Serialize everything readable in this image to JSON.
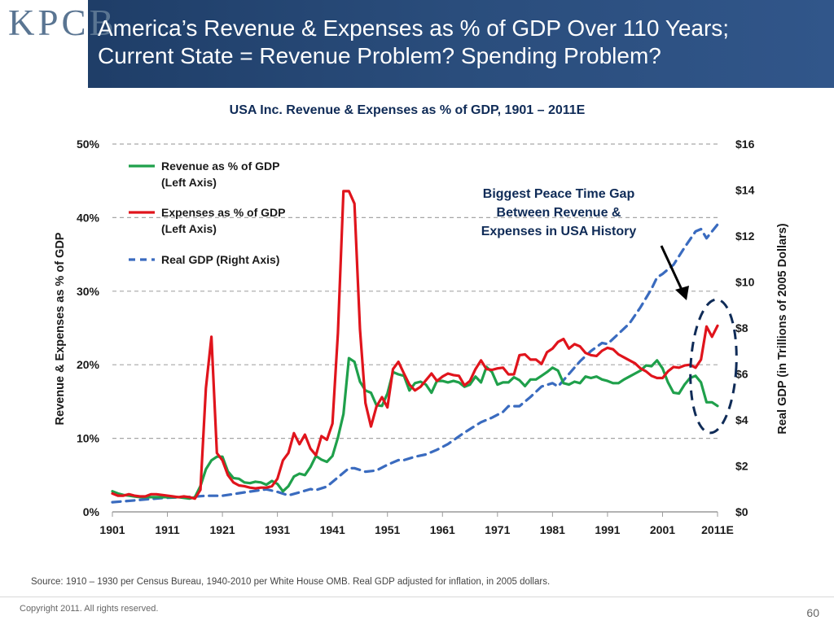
{
  "slide": {
    "logo_text": "KPCB",
    "title_line1": "America’s Revenue & Expenses as % of GDP Over 110 Years;",
    "title_line2": "Current State = Revenue Problem? Spending Problem?",
    "source_note": "Source: 1910 – 1930 per Census Bureau, 1940-2010 per White House OMB. Real GDP adjusted for inflation, in 2005 dollars.",
    "copyright": "Copyright 2011. All rights reserved.",
    "page_number": "60"
  },
  "colors": {
    "revenue": "#1fa04b",
    "expenses": "#e0141c",
    "gdp": "#3a6bbf",
    "ellipse": "#0f2b57",
    "grid": "#a6a6a6"
  },
  "chart_data": {
    "type": "line",
    "title": "USA Inc. Revenue & Expenses as % of GDP, 1901 – 2011E",
    "ylabel_left": "Revenue & Expenses as % of GDP",
    "ylabel_right": "Real GDP (in Trillions of 2005 Dollars)",
    "ylim_left": [
      0,
      50
    ],
    "ylim_right": [
      0,
      16
    ],
    "xlim": [
      1901,
      2011
    ],
    "x_ticks": [
      "1901",
      "1911",
      "1921",
      "1931",
      "1941",
      "1951",
      "1961",
      "1971",
      "1981",
      "1991",
      "2001",
      "2011E"
    ],
    "y_ticks_left": [
      "0%",
      "10%",
      "20%",
      "30%",
      "40%",
      "50%"
    ],
    "y_ticks_right": [
      "$0",
      "$2",
      "$4",
      "$6",
      "$8",
      "$10",
      "$12",
      "$14",
      "$16"
    ],
    "gridlines": "horizontal",
    "legend": [
      {
        "label_line1": "Revenue as % of GDP",
        "label_line2": "(Left Axis)"
      },
      {
        "label_line1": "Expenses as % of GDP",
        "label_line2": "(Left Axis)"
      },
      {
        "label_line1": "Real GDP (Right Axis)",
        "label_line2": ""
      }
    ],
    "annotation": {
      "line1": "Biggest Peace Time Gap",
      "line2": "Between Revenue &",
      "line3": "Expenses in USA History"
    },
    "series": [
      {
        "name": "Revenue as % of GDP",
        "axis": "left",
        "points": [
          [
            1901,
            2.8
          ],
          [
            1902,
            2.5
          ],
          [
            1903,
            2.3
          ],
          [
            1904,
            2.2
          ],
          [
            1905,
            2.1
          ],
          [
            1906,
            2.0
          ],
          [
            1907,
            2.0
          ],
          [
            1908,
            2.0
          ],
          [
            1909,
            2.0
          ],
          [
            1910,
            2.0
          ],
          [
            1911,
            2.0
          ],
          [
            1912,
            2.0
          ],
          [
            1913,
            2.0
          ],
          [
            1914,
            1.9
          ],
          [
            1915,
            1.8
          ],
          [
            1916,
            2.0
          ],
          [
            1917,
            3.5
          ],
          [
            1918,
            5.8
          ],
          [
            1919,
            7.0
          ],
          [
            1920,
            7.5
          ],
          [
            1921,
            7.5
          ],
          [
            1922,
            5.5
          ],
          [
            1923,
            4.6
          ],
          [
            1924,
            4.5
          ],
          [
            1925,
            4.0
          ],
          [
            1926,
            3.9
          ],
          [
            1927,
            4.1
          ],
          [
            1928,
            4.0
          ],
          [
            1929,
            3.7
          ],
          [
            1930,
            4.2
          ],
          [
            1931,
            3.8
          ],
          [
            1932,
            2.8
          ],
          [
            1933,
            3.5
          ],
          [
            1934,
            4.8
          ],
          [
            1935,
            5.2
          ],
          [
            1936,
            5.0
          ],
          [
            1937,
            6.1
          ],
          [
            1938,
            7.6
          ],
          [
            1939,
            7.1
          ],
          [
            1940,
            6.8
          ],
          [
            1941,
            7.6
          ],
          [
            1942,
            10.1
          ],
          [
            1943,
            13.3
          ],
          [
            1944,
            20.9
          ],
          [
            1945,
            20.4
          ],
          [
            1946,
            17.7
          ],
          [
            1947,
            16.5
          ],
          [
            1948,
            16.2
          ],
          [
            1949,
            14.5
          ],
          [
            1950,
            14.4
          ],
          [
            1951,
            16.1
          ],
          [
            1952,
            19.0
          ],
          [
            1953,
            18.7
          ],
          [
            1954,
            18.5
          ],
          [
            1955,
            16.5
          ],
          [
            1956,
            17.5
          ],
          [
            1957,
            17.7
          ],
          [
            1958,
            17.3
          ],
          [
            1959,
            16.2
          ],
          [
            1960,
            17.8
          ],
          [
            1961,
            17.8
          ],
          [
            1962,
            17.6
          ],
          [
            1963,
            17.8
          ],
          [
            1964,
            17.6
          ],
          [
            1965,
            17.0
          ],
          [
            1966,
            17.3
          ],
          [
            1967,
            18.4
          ],
          [
            1968,
            17.6
          ],
          [
            1969,
            19.7
          ],
          [
            1970,
            19.0
          ],
          [
            1971,
            17.3
          ],
          [
            1972,
            17.6
          ],
          [
            1973,
            17.6
          ],
          [
            1974,
            18.3
          ],
          [
            1975,
            17.9
          ],
          [
            1976,
            17.1
          ],
          [
            1977,
            18.0
          ],
          [
            1978,
            18.0
          ],
          [
            1979,
            18.5
          ],
          [
            1980,
            19.0
          ],
          [
            1981,
            19.6
          ],
          [
            1982,
            19.2
          ],
          [
            1983,
            17.5
          ],
          [
            1984,
            17.3
          ],
          [
            1985,
            17.7
          ],
          [
            1986,
            17.5
          ],
          [
            1987,
            18.4
          ],
          [
            1988,
            18.2
          ],
          [
            1989,
            18.4
          ],
          [
            1990,
            18.0
          ],
          [
            1991,
            17.8
          ],
          [
            1992,
            17.5
          ],
          [
            1993,
            17.5
          ],
          [
            1994,
            18.0
          ],
          [
            1995,
            18.4
          ],
          [
            1996,
            18.8
          ],
          [
            1997,
            19.2
          ],
          [
            1998,
            19.9
          ],
          [
            1999,
            19.8
          ],
          [
            2000,
            20.6
          ],
          [
            2001,
            19.5
          ],
          [
            2002,
            17.6
          ],
          [
            2003,
            16.2
          ],
          [
            2004,
            16.1
          ],
          [
            2005,
            17.3
          ],
          [
            2006,
            18.2
          ],
          [
            2007,
            18.5
          ],
          [
            2008,
            17.6
          ],
          [
            2009,
            14.9
          ],
          [
            2010,
            14.9
          ],
          [
            2011,
            14.4
          ]
        ]
      },
      {
        "name": "Expenses as % of GDP",
        "axis": "left",
        "points": [
          [
            1901,
            2.5
          ],
          [
            1902,
            2.2
          ],
          [
            1903,
            2.2
          ],
          [
            1904,
            2.4
          ],
          [
            1905,
            2.2
          ],
          [
            1906,
            2.1
          ],
          [
            1907,
            2.1
          ],
          [
            1908,
            2.4
          ],
          [
            1909,
            2.4
          ],
          [
            1910,
            2.3
          ],
          [
            1911,
            2.2
          ],
          [
            1912,
            2.1
          ],
          [
            1913,
            2.0
          ],
          [
            1914,
            2.1
          ],
          [
            1915,
            2.0
          ],
          [
            1916,
            1.8
          ],
          [
            1917,
            3.0
          ],
          [
            1918,
            16.8
          ],
          [
            1919,
            23.8
          ],
          [
            1920,
            8.0
          ],
          [
            1921,
            7.0
          ],
          [
            1922,
            5.0
          ],
          [
            1923,
            4.0
          ],
          [
            1924,
            3.6
          ],
          [
            1925,
            3.5
          ],
          [
            1926,
            3.3
          ],
          [
            1927,
            3.2
          ],
          [
            1928,
            3.3
          ],
          [
            1929,
            3.3
          ],
          [
            1930,
            3.5
          ],
          [
            1931,
            4.5
          ],
          [
            1932,
            7.0
          ],
          [
            1933,
            8.0
          ],
          [
            1934,
            10.7
          ],
          [
            1935,
            9.2
          ],
          [
            1936,
            10.5
          ],
          [
            1937,
            8.6
          ],
          [
            1938,
            7.7
          ],
          [
            1939,
            10.3
          ],
          [
            1940,
            9.8
          ],
          [
            1941,
            12.0
          ],
          [
            1942,
            24.3
          ],
          [
            1943,
            43.6
          ],
          [
            1944,
            43.6
          ],
          [
            1945,
            41.9
          ],
          [
            1946,
            24.8
          ],
          [
            1947,
            14.8
          ],
          [
            1948,
            11.6
          ],
          [
            1949,
            14.3
          ],
          [
            1950,
            15.6
          ],
          [
            1951,
            14.2
          ],
          [
            1952,
            19.4
          ],
          [
            1953,
            20.4
          ],
          [
            1954,
            18.8
          ],
          [
            1955,
            17.3
          ],
          [
            1956,
            16.5
          ],
          [
            1957,
            17.0
          ],
          [
            1958,
            17.9
          ],
          [
            1959,
            18.8
          ],
          [
            1960,
            17.8
          ],
          [
            1961,
            18.4
          ],
          [
            1962,
            18.8
          ],
          [
            1963,
            18.6
          ],
          [
            1964,
            18.5
          ],
          [
            1965,
            17.2
          ],
          [
            1966,
            17.8
          ],
          [
            1967,
            19.4
          ],
          [
            1968,
            20.6
          ],
          [
            1969,
            19.4
          ],
          [
            1970,
            19.3
          ],
          [
            1971,
            19.5
          ],
          [
            1972,
            19.6
          ],
          [
            1973,
            18.7
          ],
          [
            1974,
            18.7
          ],
          [
            1975,
            21.3
          ],
          [
            1976,
            21.4
          ],
          [
            1977,
            20.7
          ],
          [
            1978,
            20.7
          ],
          [
            1979,
            20.1
          ],
          [
            1980,
            21.7
          ],
          [
            1981,
            22.2
          ],
          [
            1982,
            23.1
          ],
          [
            1983,
            23.5
          ],
          [
            1984,
            22.2
          ],
          [
            1985,
            22.8
          ],
          [
            1986,
            22.5
          ],
          [
            1987,
            21.6
          ],
          [
            1988,
            21.3
          ],
          [
            1989,
            21.2
          ],
          [
            1990,
            21.9
          ],
          [
            1991,
            22.3
          ],
          [
            1992,
            22.1
          ],
          [
            1993,
            21.4
          ],
          [
            1994,
            21.0
          ],
          [
            1995,
            20.6
          ],
          [
            1996,
            20.2
          ],
          [
            1997,
            19.5
          ],
          [
            1998,
            19.1
          ],
          [
            1999,
            18.5
          ],
          [
            2000,
            18.2
          ],
          [
            2001,
            18.2
          ],
          [
            2002,
            19.1
          ],
          [
            2003,
            19.7
          ],
          [
            2004,
            19.6
          ],
          [
            2005,
            19.9
          ],
          [
            2006,
            20.0
          ],
          [
            2007,
            19.6
          ],
          [
            2008,
            20.7
          ],
          [
            2009,
            25.2
          ],
          [
            2010,
            23.8
          ],
          [
            2011,
            25.3
          ]
        ]
      },
      {
        "name": "Real GDP (Right Axis)",
        "axis": "right",
        "points": [
          [
            1901,
            0.42
          ],
          [
            1905,
            0.5
          ],
          [
            1910,
            0.6
          ],
          [
            1915,
            0.65
          ],
          [
            1918,
            0.7
          ],
          [
            1921,
            0.7
          ],
          [
            1925,
            0.85
          ],
          [
            1929,
            0.98
          ],
          [
            1931,
            0.87
          ],
          [
            1933,
            0.72
          ],
          [
            1935,
            0.85
          ],
          [
            1937,
            0.99
          ],
          [
            1938,
            0.95
          ],
          [
            1940,
            1.1
          ],
          [
            1942,
            1.5
          ],
          [
            1944,
            1.9
          ],
          [
            1945,
            1.9
          ],
          [
            1947,
            1.75
          ],
          [
            1949,
            1.8
          ],
          [
            1951,
            2.05
          ],
          [
            1953,
            2.25
          ],
          [
            1954,
            2.25
          ],
          [
            1956,
            2.4
          ],
          [
            1958,
            2.5
          ],
          [
            1960,
            2.7
          ],
          [
            1962,
            2.95
          ],
          [
            1965,
            3.45
          ],
          [
            1968,
            3.9
          ],
          [
            1970,
            4.1
          ],
          [
            1972,
            4.35
          ],
          [
            1973,
            4.6
          ],
          [
            1975,
            4.6
          ],
          [
            1977,
            5.0
          ],
          [
            1979,
            5.45
          ],
          [
            1981,
            5.6
          ],
          [
            1982,
            5.45
          ],
          [
            1984,
            6.0
          ],
          [
            1986,
            6.55
          ],
          [
            1988,
            7.0
          ],
          [
            1990,
            7.35
          ],
          [
            1991,
            7.3
          ],
          [
            1993,
            7.75
          ],
          [
            1995,
            8.2
          ],
          [
            1997,
            8.9
          ],
          [
            1999,
            9.7
          ],
          [
            2000,
            10.2
          ],
          [
            2001,
            10.35
          ],
          [
            2003,
            10.75
          ],
          [
            2005,
            11.5
          ],
          [
            2007,
            12.2
          ],
          [
            2008,
            12.3
          ],
          [
            2009,
            11.9
          ],
          [
            2010,
            12.2
          ],
          [
            2011,
            12.5
          ]
        ]
      }
    ]
  }
}
